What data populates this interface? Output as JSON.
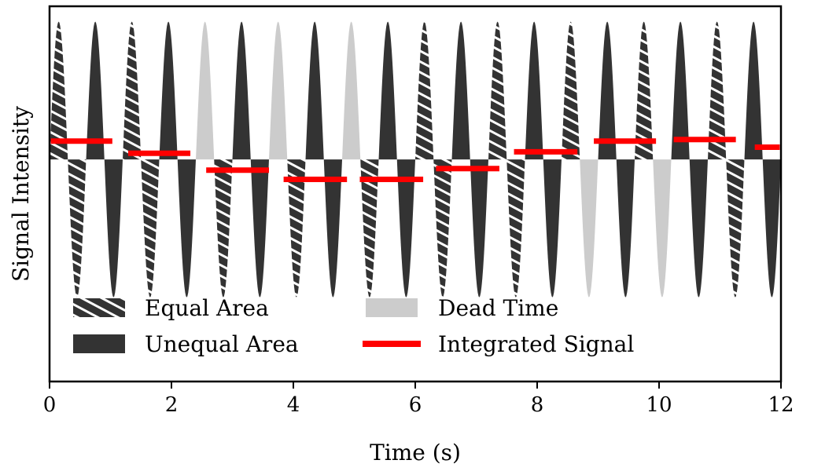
{
  "chart_data": {
    "type": "area",
    "xlabel": "Time (s)",
    "ylabel": "Signal Intensity",
    "xlim": [
      0,
      12
    ],
    "ylim": [
      -1.45,
      1.0
    ],
    "xticks": [
      0,
      2,
      4,
      6,
      8,
      10,
      12
    ],
    "grid": false,
    "legend_position": "lower-left",
    "carrier_period_s": 0.6,
    "pulse_width_s": 0.3,
    "amplitude": 0.9,
    "integration_windows": [
      {
        "start": 0.0,
        "end": 1.05,
        "dead_time_s": 0.27,
        "integrated_signal": 0.12
      },
      {
        "start": 1.27,
        "end": 2.33,
        "dead_time_s": 0.23,
        "integrated_signal": 0.04
      },
      {
        "start": 2.55,
        "end": 3.62,
        "dead_time_s": 0.2,
        "integrated_signal": -0.07
      },
      {
        "start": 3.82,
        "end": 4.9,
        "dead_time_s": 0.17,
        "integrated_signal": -0.13
      },
      {
        "start": 5.07,
        "end": 6.15,
        "dead_time_s": 0.17,
        "integrated_signal": -0.13
      },
      {
        "start": 6.32,
        "end": 7.4,
        "dead_time_s": 0.2,
        "integrated_signal": -0.06
      },
      {
        "start": 7.6,
        "end": 8.68,
        "dead_time_s": 0.23,
        "integrated_signal": 0.05
      },
      {
        "start": 8.91,
        "end": 9.97,
        "dead_time_s": 0.25,
        "integrated_signal": 0.12
      },
      {
        "start": 10.22,
        "end": 11.28,
        "dead_time_s": 0.27,
        "integrated_signal": 0.13
      },
      {
        "start": 11.55,
        "end": 12.0,
        "dead_time_s": 0.0,
        "integrated_signal": 0.08
      }
    ],
    "series": [
      {
        "name": "Equal Area",
        "style": "hatched",
        "color": "#333333"
      },
      {
        "name": "Unequal Area",
        "style": "solid",
        "color": "#333333"
      },
      {
        "name": "Dead Time",
        "style": "solid",
        "color": "#cccccc"
      },
      {
        "name": "Integrated Signal",
        "style": "line",
        "color": "#ff0000"
      }
    ]
  }
}
